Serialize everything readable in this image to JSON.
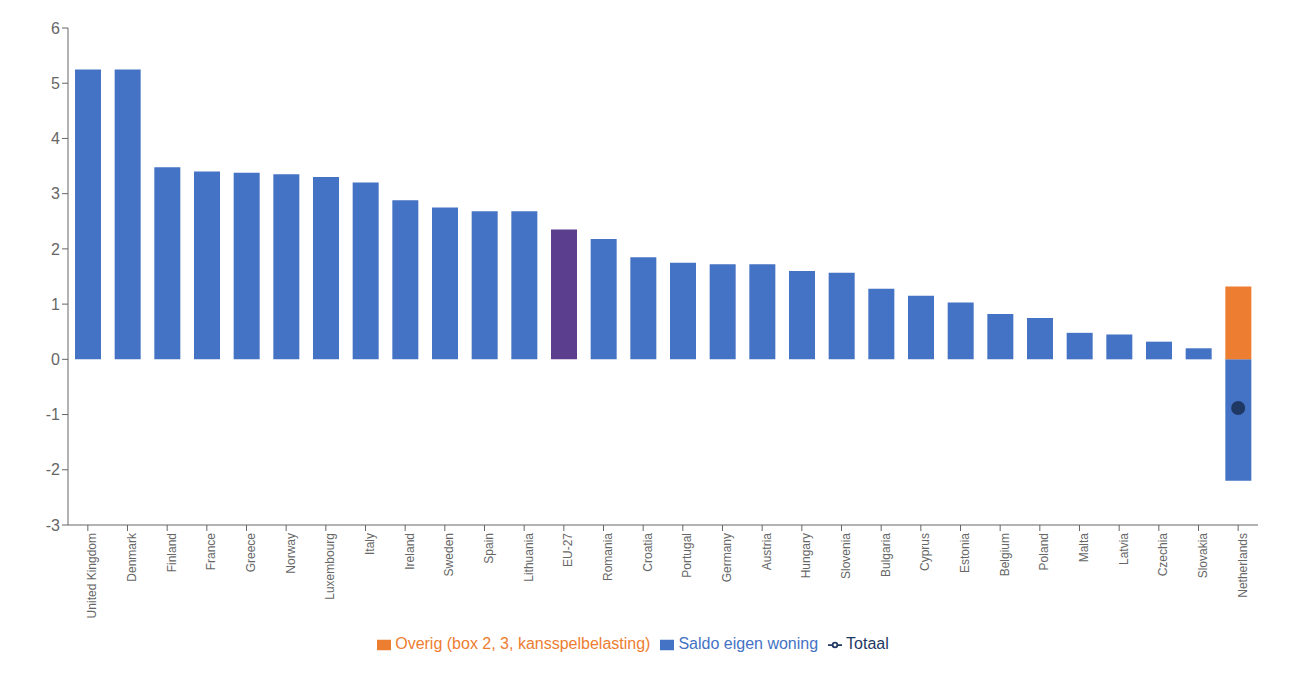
{
  "chart_data": {
    "type": "bar",
    "categories": [
      "United Kingdom",
      "Denmark",
      "Finland",
      "France",
      "Greece",
      "Norway",
      "Luxembourg",
      "Italy",
      "Ireland",
      "Sweden",
      "Spain",
      "Lithuania",
      "EU-27",
      "Romania",
      "Croatia",
      "Portugal",
      "Germany",
      "Austria",
      "Hungary",
      "Slovenia",
      "Bulgaria",
      "Cyprus",
      "Estonia",
      "Belgium",
      "Poland",
      "Malta",
      "Latvia",
      "Czechia",
      "Slovakia",
      "Netherlands"
    ],
    "series": [
      {
        "name": "Saldo eigen woning",
        "type": "bar",
        "color": "#4472c4",
        "colors": [
          "#4472c4",
          "#4472c4",
          "#4472c4",
          "#4472c4",
          "#4472c4",
          "#4472c4",
          "#4472c4",
          "#4472c4",
          "#4472c4",
          "#4472c4",
          "#4472c4",
          "#4472c4",
          "#5b3f8e",
          "#4472c4",
          "#4472c4",
          "#4472c4",
          "#4472c4",
          "#4472c4",
          "#4472c4",
          "#4472c4",
          "#4472c4",
          "#4472c4",
          "#4472c4",
          "#4472c4",
          "#4472c4",
          "#4472c4",
          "#4472c4",
          "#4472c4",
          "#4472c4",
          "#4472c4"
        ],
        "values": [
          5.25,
          5.25,
          3.48,
          3.4,
          3.38,
          3.35,
          3.3,
          3.2,
          2.88,
          2.75,
          2.68,
          2.68,
          2.35,
          2.18,
          1.85,
          1.75,
          1.72,
          1.72,
          1.6,
          1.57,
          1.28,
          1.15,
          1.03,
          0.82,
          0.75,
          0.48,
          0.45,
          0.32,
          0.2,
          -2.2
        ]
      },
      {
        "name": "Overig (box 2, 3, kansspelbelasting)",
        "type": "bar",
        "color": "#ed7d31",
        "values": [
          0,
          0,
          0,
          0,
          0,
          0,
          0,
          0,
          0,
          0,
          0,
          0,
          0,
          0,
          0,
          0,
          0,
          0,
          0,
          0,
          0,
          0,
          0,
          0,
          0,
          0,
          0,
          0,
          0,
          1.32
        ]
      },
      {
        "name": "Totaal",
        "type": "scatter",
        "marker": "circle",
        "color": "#1f3864",
        "values": [
          null,
          null,
          null,
          null,
          null,
          null,
          null,
          null,
          null,
          null,
          null,
          null,
          null,
          null,
          null,
          null,
          null,
          null,
          null,
          null,
          null,
          null,
          null,
          null,
          null,
          null,
          null,
          null,
          null,
          -0.88
        ]
      }
    ],
    "ylim": [
      -3,
      6
    ],
    "yticks": [
      -3,
      -2,
      -1,
      0,
      1,
      2,
      3,
      4,
      5,
      6
    ],
    "grid": false,
    "legend": "bottom"
  }
}
